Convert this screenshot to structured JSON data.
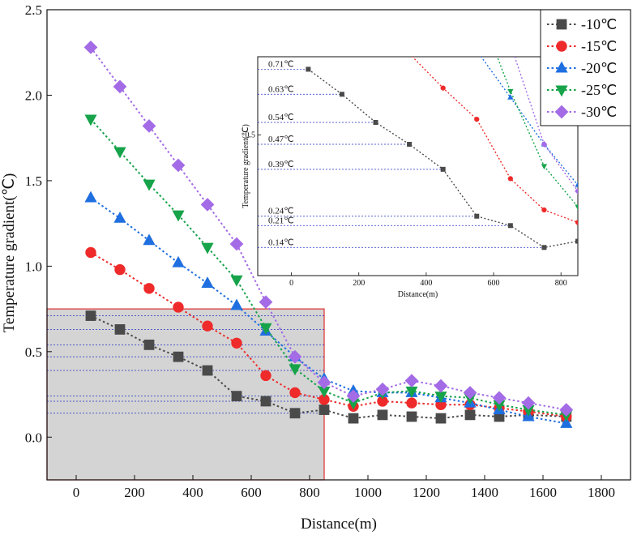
{
  "chart_data": {
    "type": "line",
    "title": "",
    "xlabel": "Distance(m)",
    "ylabel": "Temperature gradient(℃)",
    "xlim": [
      -100,
      1900
    ],
    "ylim": [
      -0.25,
      2.5
    ],
    "x_ticks": [
      0,
      200,
      400,
      600,
      800,
      1000,
      1200,
      1400,
      1600,
      1800
    ],
    "x_tick_labels": [
      "0",
      "200",
      "400",
      "600",
      "800",
      "1000",
      "1200",
      "1400",
      "1600",
      "1800"
    ],
    "y_ticks": [
      0.0,
      0.5,
      1.0,
      1.5,
      2.0,
      2.5
    ],
    "y_tick_labels": [
      "0.0",
      "0.5",
      "1.0",
      "1.5",
      "2.0",
      "2.5"
    ],
    "grid": false,
    "legend_position": "top-right",
    "x": [
      50,
      150,
      250,
      350,
      450,
      550,
      650,
      750,
      850,
      950,
      1050,
      1150,
      1250,
      1350,
      1450,
      1550,
      1680
    ],
    "series": [
      {
        "name": "-10℃",
        "color": "#4a4a4a",
        "marker": "square",
        "values": [
          0.71,
          0.63,
          0.54,
          0.47,
          0.39,
          0.24,
          0.21,
          0.14,
          0.16,
          0.11,
          0.13,
          0.12,
          0.11,
          0.13,
          0.12,
          0.13,
          0.12
        ]
      },
      {
        "name": "-15℃",
        "color": "#ee2a2a",
        "marker": "circle",
        "values": [
          1.08,
          0.98,
          0.87,
          0.76,
          0.65,
          0.55,
          0.36,
          0.26,
          0.22,
          0.18,
          0.21,
          0.2,
          0.19,
          0.19,
          0.17,
          0.15,
          0.12
        ]
      },
      {
        "name": "-20℃",
        "color": "#1f6fe0",
        "marker": "triangle-up",
        "values": [
          1.4,
          1.28,
          1.15,
          1.02,
          0.9,
          0.77,
          0.62,
          0.47,
          0.34,
          0.27,
          0.26,
          0.26,
          0.23,
          0.2,
          0.16,
          0.12,
          0.08
        ]
      },
      {
        "name": "-25℃",
        "color": "#16a34a",
        "marker": "triangle-down",
        "values": [
          1.86,
          1.67,
          1.48,
          1.3,
          1.11,
          0.92,
          0.64,
          0.4,
          0.27,
          0.2,
          0.26,
          0.27,
          0.24,
          0.23,
          0.19,
          0.16,
          0.13
        ]
      },
      {
        "name": "-30℃",
        "color": "#a46be6",
        "marker": "diamond",
        "values": [
          2.28,
          2.05,
          1.82,
          1.59,
          1.36,
          1.13,
          0.79,
          0.47,
          0.32,
          0.24,
          0.28,
          0.33,
          0.3,
          0.26,
          0.23,
          0.2,
          0.16
        ]
      }
    ],
    "highlight_region": {
      "x_range": [
        -100,
        850
      ],
      "y_range": [
        -0.25,
        0.75
      ]
    },
    "inset": {
      "xlabel": "Distance(m)",
      "ylabel": "Temperature gradient(℃)",
      "xlim": [
        -100,
        850
      ],
      "ylim": [
        0.05,
        0.75
      ],
      "x_ticks": [
        0,
        200,
        400,
        600,
        800
      ],
      "x_tick_labels": [
        "0",
        "200",
        "400",
        "600",
        "800"
      ],
      "y_ticks": [
        0.5
      ],
      "y_tick_labels": [
        "0.5"
      ],
      "annotations": [
        "0.71℃",
        "0.63℃",
        "0.54℃",
        "0.47℃",
        "0.39℃",
        "0.24℃",
        "0.21℃",
        "0.14℃"
      ],
      "annotation_values": [
        0.71,
        0.63,
        0.54,
        0.47,
        0.39,
        0.24,
        0.21,
        0.14
      ]
    }
  }
}
